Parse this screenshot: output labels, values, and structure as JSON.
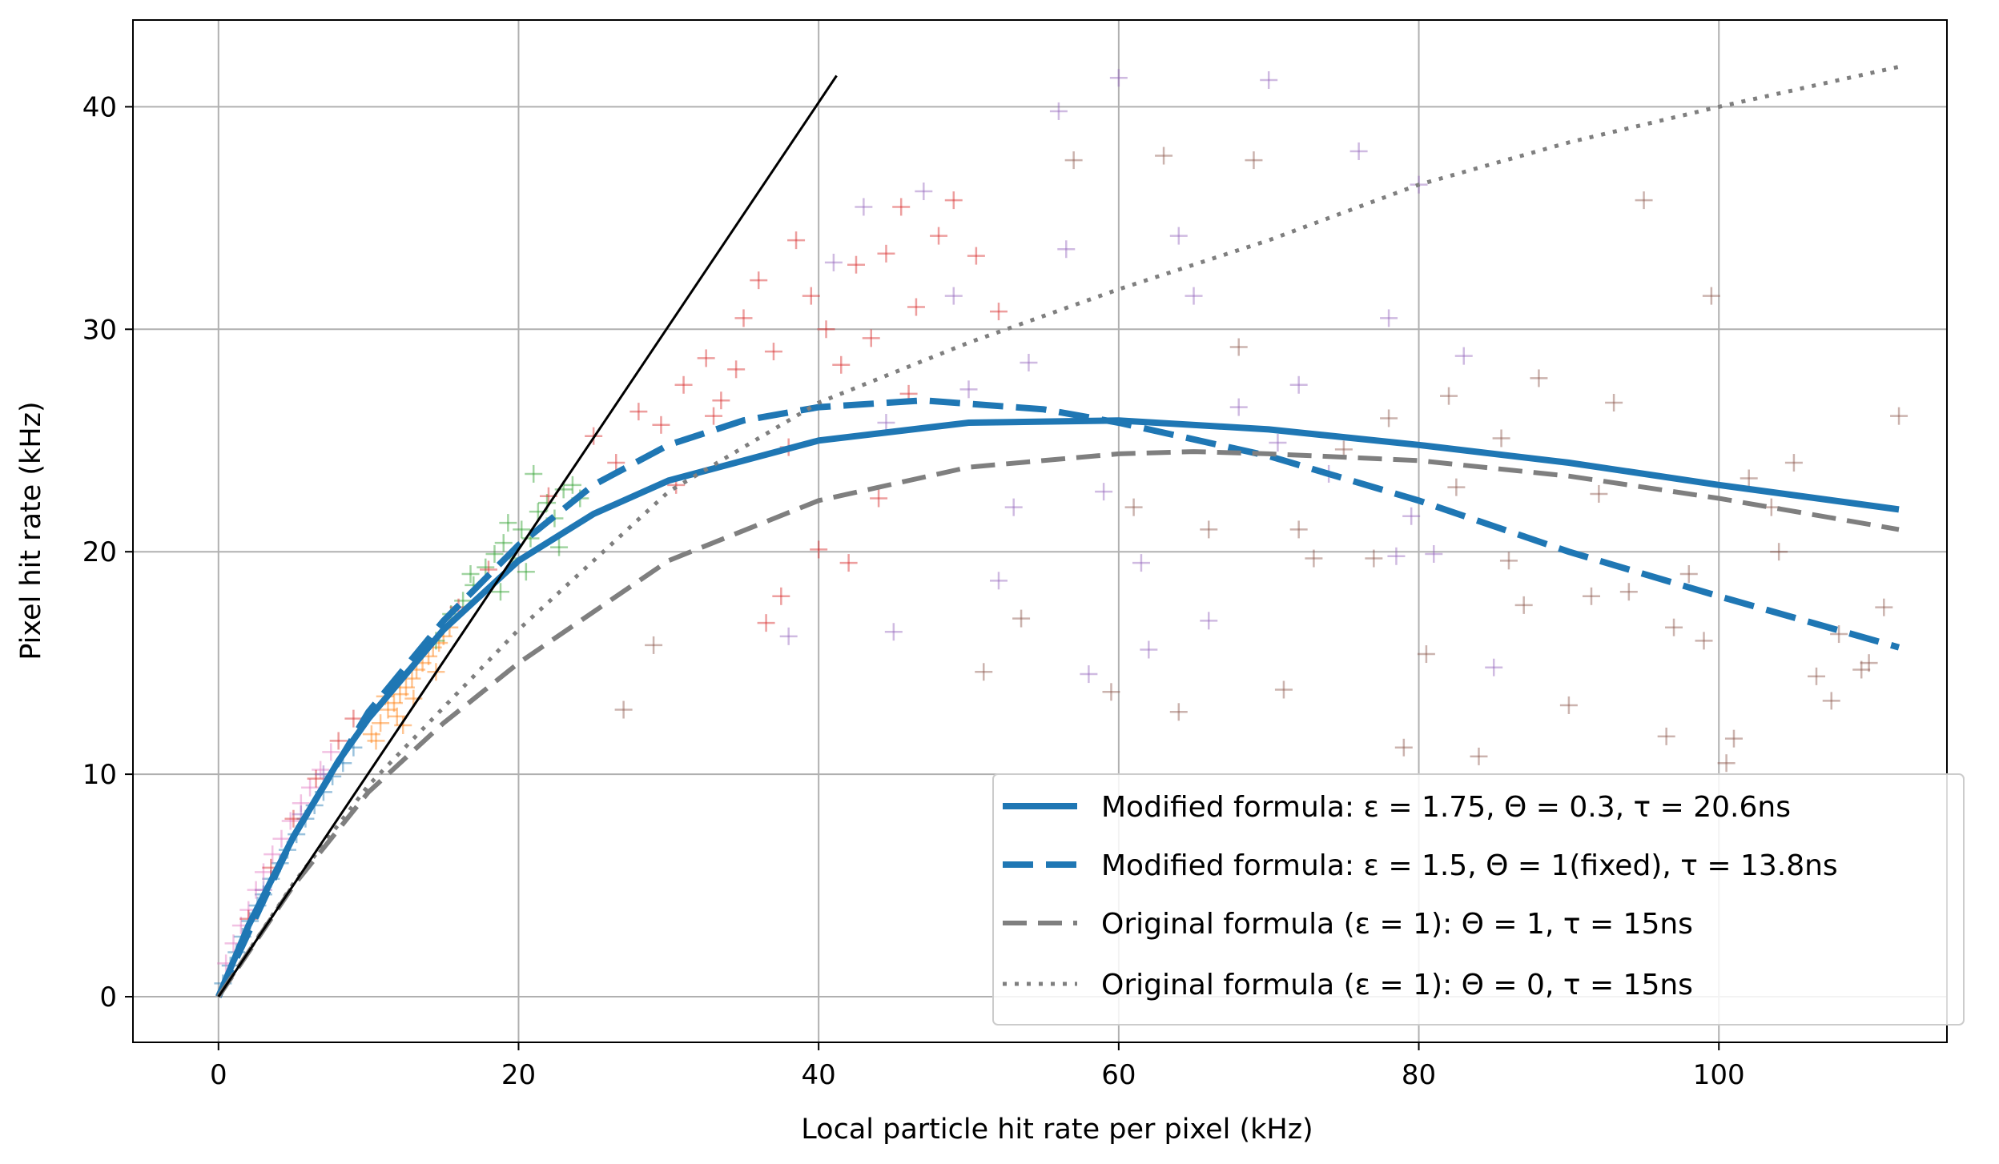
{
  "chart_data": {
    "type": "scatter",
    "title": "",
    "xlabel": "Local particle hit rate per pixel (kHz)",
    "ylabel": "Pixel hit rate (kHz)",
    "xlim": [
      -5.7,
      115.2
    ],
    "ylim": [
      -2.05,
      43.9
    ],
    "xticks": [
      0,
      20,
      40,
      60,
      80,
      100
    ],
    "yticks": [
      0,
      10,
      20,
      30,
      40
    ],
    "xtick_labels": [
      "0",
      "20",
      "40",
      "60",
      "80",
      "100"
    ],
    "ytick_labels": [
      "0",
      "10",
      "20",
      "30",
      "40"
    ],
    "grid": true,
    "legend_placement": "lower-right",
    "lines": [
      {
        "name": "Modified formula: ε = 1.75, Θ = 0.3, τ = 20.6ns",
        "color": "#1f77b4",
        "style": "solid",
        "width": 8,
        "in_legend": true,
        "x": [
          0,
          2,
          5,
          8,
          10,
          15,
          20,
          25,
          30,
          40,
          50,
          60,
          70,
          80,
          90,
          100,
          112
        ],
        "y": [
          0,
          3.2,
          7.2,
          10.6,
          12.5,
          16.5,
          19.6,
          21.7,
          23.2,
          25.0,
          25.8,
          25.9,
          25.5,
          24.8,
          24.0,
          23.0,
          21.9
        ]
      },
      {
        "name": "Modified formula: ε = 1.5, Θ = 1(fixed), τ = 13.8ns",
        "color": "#1f77b4",
        "style": "dashed",
        "width": 8,
        "in_legend": true,
        "x": [
          0,
          5,
          10,
          15,
          20,
          25,
          30,
          35,
          40,
          47,
          55,
          60,
          70,
          80,
          90,
          100,
          112
        ],
        "y": [
          0,
          7.2,
          12.8,
          16.9,
          20.3,
          23.0,
          24.8,
          25.9,
          26.5,
          26.8,
          26.4,
          25.8,
          24.3,
          22.3,
          20.0,
          18.0,
          15.7
        ]
      },
      {
        "name": "Original formula (ε = 1): Θ = 1, τ = 15ns",
        "color": "#7f7f7f",
        "style": "dashed",
        "width": 6,
        "in_legend": true,
        "x": [
          0,
          5,
          10,
          15,
          20,
          30,
          40,
          50,
          60,
          65,
          70,
          80,
          90,
          100,
          112
        ],
        "y": [
          0,
          5.0,
          9.2,
          12.3,
          15.0,
          19.6,
          22.3,
          23.8,
          24.4,
          24.5,
          24.4,
          24.1,
          23.4,
          22.4,
          21.0
        ]
      },
      {
        "name": "Original formula (ε = 1): Θ = 0, τ = 15ns",
        "color": "#7f7f7f",
        "style": "dotted",
        "width": 5,
        "in_legend": true,
        "x": [
          0,
          5,
          10,
          20,
          30,
          40,
          50,
          60,
          70,
          80,
          90,
          100,
          112
        ],
        "y": [
          0,
          5.1,
          9.5,
          16.5,
          22.7,
          26.7,
          29.4,
          31.8,
          34.0,
          36.5,
          38.4,
          40.0,
          41.8
        ]
      },
      {
        "name": "y = x",
        "color": "#000000",
        "style": "solid",
        "width": 3,
        "in_legend": false,
        "x": [
          0,
          41.2
        ],
        "y": [
          0,
          41.4
        ]
      }
    ],
    "scatter_series": [
      {
        "name": "series-blue",
        "color": "#1f77b4",
        "x": [
          0.3,
          0.8,
          1.2,
          1.6,
          2.1,
          2.6,
          3.0,
          3.5,
          4.1,
          4.6,
          5.2,
          5.8,
          6.4,
          7.0,
          7.6,
          8.3,
          9.0
        ],
        "y": [
          0.6,
          1.4,
          2.0,
          2.7,
          3.4,
          4.1,
          4.6,
          5.3,
          6.0,
          6.6,
          7.3,
          8.0,
          8.6,
          9.2,
          9.9,
          10.5,
          11.2
        ]
      },
      {
        "name": "series-orange",
        "color": "#ff7f0e",
        "x": [
          10.2,
          10.8,
          11.3,
          11.7,
          12.1,
          12.5,
          12.9,
          13.2,
          13.6,
          14.0,
          14.3,
          14.7,
          15.0,
          15.4,
          10.5,
          11.9,
          13.0,
          14.5,
          12.3,
          11.1
        ],
        "y": [
          11.8,
          12.3,
          12.9,
          13.2,
          13.6,
          13.9,
          14.3,
          14.7,
          15.0,
          15.3,
          15.7,
          15.9,
          16.2,
          16.6,
          11.5,
          12.6,
          13.4,
          14.6,
          12.2,
          13.5
        ]
      },
      {
        "name": "series-green",
        "color": "#2ca02c",
        "x": [
          14.5,
          15.5,
          16.3,
          17.0,
          17.8,
          18.4,
          19.0,
          19.6,
          20.2,
          20.8,
          21.3,
          21.9,
          22.4,
          23.0,
          23.6,
          24.1,
          18.8,
          20.5,
          22.7,
          16.8,
          21.0,
          19.3
        ],
        "y": [
          16.0,
          17.2,
          17.8,
          18.5,
          19.3,
          19.9,
          20.4,
          19.7,
          21.0,
          20.6,
          21.8,
          22.2,
          21.5,
          22.8,
          23.0,
          22.4,
          18.2,
          19.1,
          20.2,
          19.0,
          23.5,
          21.3
        ]
      },
      {
        "name": "series-pink",
        "color": "#e377c2",
        "x": [
          0.5,
          1.0,
          1.5,
          2.0,
          2.5,
          3.0,
          3.6,
          4.2,
          4.8,
          5.5,
          6.1,
          6.8,
          7.5
        ],
        "y": [
          1.5,
          2.4,
          3.2,
          3.9,
          4.8,
          5.6,
          6.4,
          7.1,
          7.9,
          8.7,
          9.4,
          10.2,
          11.0
        ]
      },
      {
        "name": "series-red",
        "color": "#d62728",
        "x": [
          2.0,
          3.5,
          5.0,
          6.5,
          8.0,
          9.0,
          16.0,
          18.0,
          22.0,
          25.0,
          26.5,
          28.0,
          29.5,
          31.0,
          32.5,
          33.5,
          35.0,
          36.0,
          37.0,
          38.5,
          39.5,
          40.5,
          41.5,
          42.5,
          43.5,
          44.5,
          45.5,
          46.5,
          48.0,
          49.0,
          50.5,
          52.0,
          36.5,
          38.0,
          40.0,
          33.0,
          44.0,
          46.0,
          37.5,
          42.0,
          30.5,
          34.5
        ],
        "y": [
          3.5,
          5.8,
          8.0,
          9.8,
          11.5,
          12.5,
          17.5,
          19.2,
          22.5,
          25.2,
          24.0,
          26.3,
          25.7,
          27.5,
          28.7,
          26.8,
          30.5,
          32.2,
          29.0,
          34.0,
          31.5,
          30.0,
          28.4,
          32.9,
          29.6,
          33.4,
          35.5,
          31.0,
          34.2,
          35.8,
          33.3,
          30.8,
          16.8,
          24.7,
          20.1,
          26.1,
          22.4,
          27.1,
          18.0,
          19.5,
          23.0,
          28.2
        ]
      },
      {
        "name": "series-purple",
        "color": "#9467bd",
        "x": [
          3.0,
          5.5,
          7.0,
          38.0,
          41.0,
          43.0,
          45.0,
          47.0,
          49.0,
          52.0,
          54.0,
          56.0,
          58.0,
          60.0,
          62.0,
          64.0,
          66.0,
          68.0,
          70.0,
          72.0,
          74.0,
          76.0,
          78.0,
          80.0,
          83.0,
          85.0,
          59.0,
          70.6,
          56.5,
          65.0,
          61.5,
          50.0,
          44.5,
          53.0,
          78.5,
          79.5,
          81.0
        ],
        "y": [
          4.8,
          8.2,
          10.0,
          16.2,
          33.0,
          35.5,
          16.4,
          36.2,
          31.5,
          18.7,
          28.5,
          39.8,
          14.5,
          41.3,
          15.6,
          34.2,
          16.9,
          26.5,
          41.2,
          27.5,
          23.5,
          38.0,
          30.5,
          36.5,
          28.8,
          14.8,
          22.7,
          24.9,
          33.6,
          31.5,
          19.5,
          27.3,
          25.8,
          22.0,
          19.8,
          21.6,
          19.9
        ]
      },
      {
        "name": "series-brown",
        "color": "#8c564b",
        "x": [
          27.0,
          29.0,
          51.0,
          53.5,
          57.0,
          59.5,
          61.0,
          63.0,
          66.0,
          69.0,
          71.0,
          73.0,
          75.0,
          77.0,
          79.0,
          80.5,
          82.0,
          84.0,
          86.0,
          88.0,
          90.0,
          91.5,
          93.0,
          95.0,
          96.5,
          98.0,
          99.5,
          100.5,
          102.0,
          103.5,
          105.0,
          106.5,
          108.0,
          109.5,
          111.0,
          112.0,
          87.0,
          92.0,
          97.0,
          101.0,
          104.0,
          107.5,
          110.0,
          85.5,
          94.0,
          78.0,
          68.0,
          64.0,
          72.0,
          82.5,
          99.0
        ],
        "y": [
          12.9,
          15.8,
          14.6,
          17.0,
          37.6,
          13.7,
          22.0,
          37.8,
          21.0,
          37.6,
          13.8,
          19.7,
          24.6,
          19.7,
          11.2,
          15.4,
          27.0,
          10.8,
          19.6,
          27.8,
          13.1,
          18.0,
          26.7,
          35.8,
          11.7,
          19.0,
          31.5,
          10.5,
          23.3,
          22.0,
          24.0,
          14.4,
          16.3,
          14.7,
          17.5,
          26.1,
          17.6,
          22.6,
          16.6,
          11.6,
          20.0,
          13.3,
          15.0,
          25.1,
          18.2,
          26.0,
          29.2,
          12.8,
          21.0,
          22.9,
          16.0
        ]
      }
    ]
  }
}
